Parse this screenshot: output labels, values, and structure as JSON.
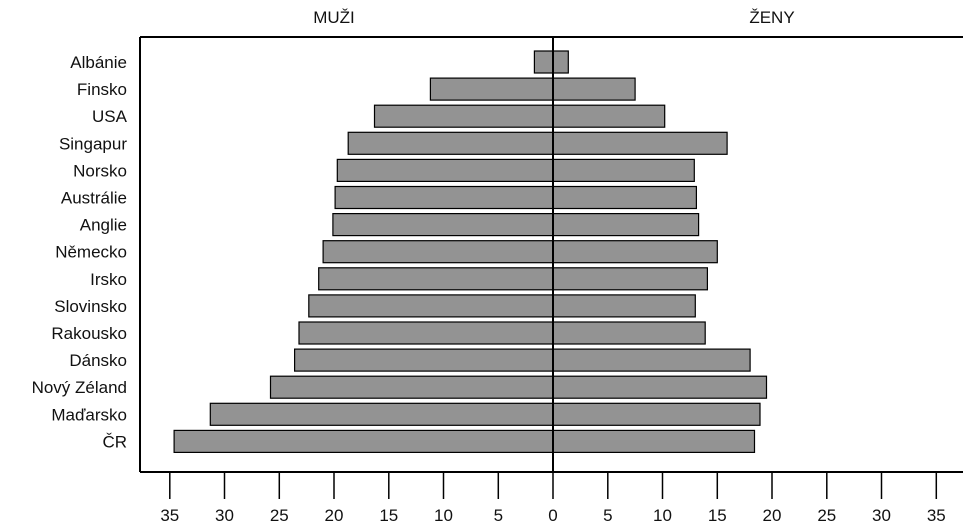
{
  "chart_data": {
    "type": "bar",
    "orientation": "horizontal",
    "layout": "back-to-back",
    "title": "",
    "xlabel": "",
    "ylabel": "",
    "grid": false,
    "bar_color": "#939393",
    "categories": [
      "Albánie",
      "Finsko",
      "USA",
      "Singapur",
      "Norsko",
      "Austrálie",
      "Anglie",
      "Německo",
      "Irsko",
      "Slovinsko",
      "Rakousko",
      "Dánsko",
      "Nový Zéland",
      "Maďarsko",
      "ČR"
    ],
    "series": [
      {
        "name": "MUŽI",
        "side": "left",
        "values": [
          1.7,
          11.2,
          16.3,
          18.7,
          19.7,
          19.9,
          20.1,
          21.0,
          21.4,
          22.3,
          23.2,
          23.6,
          25.8,
          31.3,
          34.6
        ]
      },
      {
        "name": "ŽENY",
        "side": "right",
        "values": [
          1.4,
          7.5,
          10.2,
          15.9,
          12.9,
          13.1,
          13.3,
          15.0,
          14.1,
          13.0,
          13.9,
          18.0,
          19.5,
          18.9,
          18.4
        ]
      }
    ],
    "xlim": [
      -37,
      37
    ],
    "xticks": [
      -35,
      -30,
      -25,
      -20,
      -15,
      -10,
      -5,
      0,
      5,
      10,
      15,
      20,
      25,
      30,
      35
    ],
    "xtick_labels": [
      "35",
      "30",
      "25",
      "20",
      "15",
      "10",
      "5",
      "0",
      "5",
      "10",
      "15",
      "20",
      "25",
      "30",
      "35"
    ]
  }
}
